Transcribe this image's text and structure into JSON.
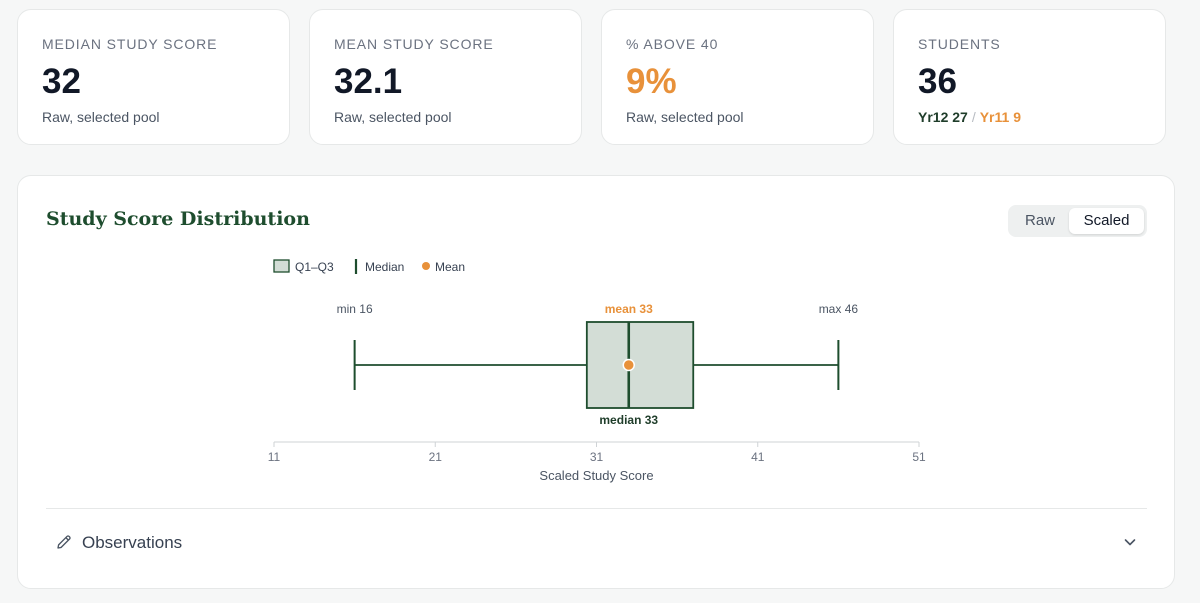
{
  "cards": [
    {
      "label": "MEDIAN STUDY SCORE",
      "value": "32",
      "sub": "Raw, selected pool"
    },
    {
      "label": "MEAN STUDY SCORE",
      "value": "32.1",
      "sub": "Raw, selected pool"
    },
    {
      "label": "% ABOVE 40",
      "value": "9%",
      "sub": "Raw, selected pool"
    },
    {
      "label": "STUDENTS",
      "value": "36",
      "yr12": "Yr12 27",
      "sep": "/",
      "yr11": "Yr11 9"
    }
  ],
  "panel": {
    "title": "Study Score Distribution",
    "toggle": {
      "raw": "Raw",
      "scaled": "Scaled",
      "selected": "Scaled"
    },
    "observations_label": "Observations"
  },
  "colors": {
    "box_fill": "#d3ddd6",
    "box_stroke": "#1e4d2e",
    "mean": "#e8913a",
    "axis": "#cfd3d6"
  },
  "chart_data": {
    "type": "boxplot",
    "xlabel": "Scaled Study Score",
    "xlim": [
      11,
      51
    ],
    "ticks": [
      11,
      21,
      31,
      41,
      51
    ],
    "legend": [
      {
        "name": "Q1–Q3",
        "kind": "box"
      },
      {
        "name": "Median",
        "kind": "line"
      },
      {
        "name": "Mean",
        "kind": "dot"
      }
    ],
    "min": 16,
    "q1": 30.4,
    "median": 33,
    "q3": 37,
    "max": 46,
    "mean": 33,
    "labels": {
      "min": "min 16",
      "max": "max 46",
      "mean": "mean 33",
      "median": "median 33"
    }
  }
}
